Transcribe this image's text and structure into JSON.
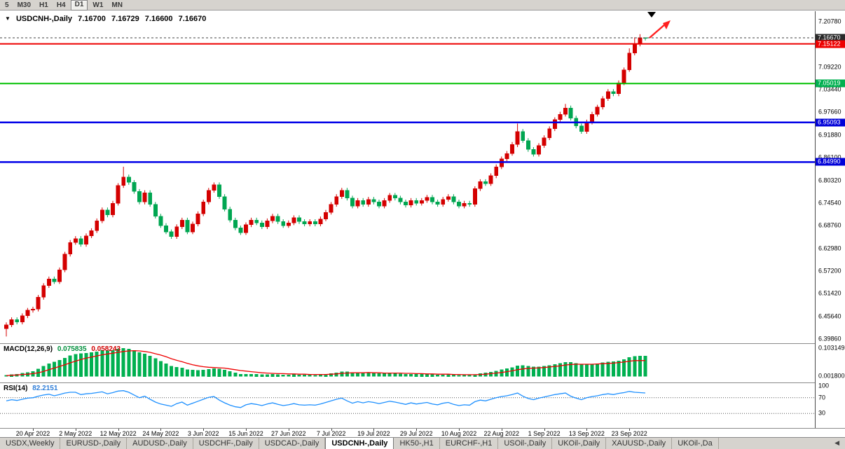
{
  "toolbar": {
    "periods": [
      {
        "label": "5"
      },
      {
        "label": "M30"
      },
      {
        "label": "H1"
      },
      {
        "label": "H4"
      },
      {
        "label": "D1",
        "active": true
      },
      {
        "label": "W1"
      },
      {
        "label": "MN"
      }
    ]
  },
  "chart": {
    "title": {
      "dropdown_icon": "▼",
      "symbol": "USDCNH-,Daily",
      "open": "7.16700",
      "high": "7.16729",
      "low": "7.16600",
      "close": "7.16670"
    },
    "price_axis": {
      "labels": [
        "7.20780",
        "7.15000",
        "7.09220",
        "7.03440",
        "6.97660",
        "6.91880",
        "6.86100",
        "6.80320",
        "6.74540",
        "6.68760",
        "6.62980",
        "6.57200",
        "6.51420",
        "6.45640",
        "6.39860"
      ],
      "markers": [
        {
          "text": "7.16670",
          "bg": "#2a2a2a",
          "role": "current-price"
        },
        {
          "text": "7.15122",
          "bg": "#ee0000",
          "role": "resistance-line"
        },
        {
          "text": "7.05019",
          "bg": "#00b050",
          "role": "support-line"
        },
        {
          "text": "6.95093",
          "bg": "#0000d8",
          "role": "support-line"
        },
        {
          "text": "6.84990",
          "bg": "#0000d8",
          "role": "support-line"
        }
      ]
    },
    "macd": {
      "label": "MACD(12,26,9)",
      "value": "0.075835",
      "signal_value": "0.058243"
    },
    "rsi": {
      "label": "RSI(14)",
      "value": "82.2151"
    }
  },
  "tabs_bar": {
    "scroll_icon": "◀",
    "tabs": [
      {
        "label": "USDX,Weekly"
      },
      {
        "label": "EURUSD-,Daily"
      },
      {
        "label": "AUDUSD-,Daily"
      },
      {
        "label": "USDCHF-,Daily"
      },
      {
        "label": "USDCAD-,Daily"
      },
      {
        "label": "USDCNH-,Daily",
        "active": true
      },
      {
        "label": "HK50-,H1"
      },
      {
        "label": "EURCHF-,H1"
      },
      {
        "label": "USOil-,Daily"
      },
      {
        "label": "UKOil-,Daily"
      },
      {
        "label": "XAUUSD-,Daily"
      },
      {
        "label": "UKOil-,Da"
      }
    ]
  },
  "chart_data": {
    "type": "candlestick",
    "symbol": "USDCNH-",
    "timeframe": "Daily",
    "ohlc_current": {
      "open": 7.167,
      "high": 7.16729,
      "low": 7.166,
      "close": 7.1667
    },
    "up_color": "#d40000",
    "down_color": "#00a651",
    "y_axis": {
      "min": 6.3986,
      "max": 7.2078,
      "tick_step": 0.0578
    },
    "x_ticks": {
      "indices": [
        5,
        13,
        21,
        29,
        37,
        45,
        53,
        61,
        69,
        77,
        85,
        93,
        101,
        109,
        117
      ],
      "labels": [
        "20 Apr 2022",
        "2 May 2022",
        "12 May 2022",
        "24 May 2022",
        "3 Jun 2022",
        "15 Jun 2022",
        "27 Jun 2022",
        "7 Jul 2022",
        "19 Jul 2022",
        "29 Jul 2022",
        "10 Aug 2022",
        "22 Aug 2022",
        "1 Sep 2022",
        "13 Sep 2022",
        "23 Sep 2022"
      ]
    },
    "h_lines": [
      {
        "value": 7.15122,
        "color": "#ee0000",
        "width": 2
      },
      {
        "value": 7.05019,
        "color": "#00c000",
        "width": 2
      },
      {
        "value": 6.95093,
        "color": "#0000e8",
        "width": 2.5
      },
      {
        "value": 6.8499,
        "color": "#0000e8",
        "width": 2.5
      }
    ],
    "current_price": {
      "value": 7.1667,
      "color": "#404040"
    },
    "annotations": {
      "trend_arrow_color": "#ff2020",
      "marker_triangle_color": "#000000"
    },
    "candles": {
      "note": "closes estimated from pixels; open = previous close; high/low = body extreme +/- default_wick unless overridden [high,low]",
      "first_open": 6.425,
      "default_wick": 0.006,
      "wick_overrides": {
        "0": [
          6.441,
          6.405
        ],
        "22": [
          6.838,
          6.784
        ],
        "96": [
          6.948,
          6.888
        ],
        "105": [
          6.998,
          6.966
        ],
        "117": [
          7.14,
          7.08
        ],
        "118": [
          7.168,
          7.122
        ],
        "119": [
          7.176,
          7.145
        ],
        "120": [
          7.1673,
          7.16
        ]
      },
      "closes": [
        6.435,
        6.448,
        6.442,
        6.458,
        6.472,
        6.475,
        6.505,
        6.535,
        6.552,
        6.545,
        6.575,
        6.615,
        6.645,
        6.655,
        6.64,
        6.662,
        6.675,
        6.7,
        6.728,
        6.715,
        6.745,
        6.79,
        6.812,
        6.798,
        6.775,
        6.748,
        6.772,
        6.742,
        6.712,
        6.688,
        6.672,
        6.66,
        6.685,
        6.702,
        6.672,
        6.692,
        6.718,
        6.748,
        6.778,
        6.792,
        6.762,
        6.73,
        6.702,
        6.682,
        6.67,
        6.69,
        6.702,
        6.695,
        6.685,
        6.7,
        6.712,
        6.698,
        6.688,
        6.695,
        6.708,
        6.698,
        6.692,
        6.698,
        6.692,
        6.705,
        6.722,
        6.742,
        6.762,
        6.778,
        6.758,
        6.738,
        6.752,
        6.742,
        6.755,
        6.748,
        6.738,
        6.752,
        6.765,
        6.758,
        6.748,
        6.74,
        6.752,
        6.745,
        6.752,
        6.76,
        6.748,
        6.742,
        6.755,
        6.762,
        6.748,
        6.738,
        6.745,
        6.742,
        6.782,
        6.8,
        6.795,
        6.815,
        6.838,
        6.858,
        6.872,
        6.895,
        6.928,
        6.905,
        6.882,
        6.87,
        6.892,
        6.912,
        6.935,
        6.958,
        6.972,
        6.988,
        6.962,
        6.942,
        6.928,
        6.952,
        6.972,
        6.99,
        7.012,
        7.03,
        7.024,
        7.052,
        7.085,
        7.128,
        7.152,
        7.167,
        7.1667
      ]
    },
    "indicators": {
      "macd": {
        "name": "MACD(12,26,9)",
        "current": 0.075835,
        "signal_current": 0.058243,
        "scale_top": 0.103149,
        "scale_bottom": 0.0018,
        "scale_labels": {
          "top": "0.103149",
          "bottom": "0.001800"
        },
        "histogram_color": "#00b050",
        "signal_color": "#ee0000",
        "values": [
          0.005,
          0.008,
          0.01,
          0.013,
          0.016,
          0.02,
          0.028,
          0.038,
          0.048,
          0.054,
          0.06,
          0.068,
          0.076,
          0.082,
          0.084,
          0.086,
          0.088,
          0.091,
          0.095,
          0.094,
          0.096,
          0.1,
          0.103,
          0.101,
          0.096,
          0.088,
          0.083,
          0.075,
          0.066,
          0.056,
          0.047,
          0.039,
          0.035,
          0.032,
          0.026,
          0.024,
          0.023,
          0.024,
          0.027,
          0.03,
          0.028,
          0.024,
          0.019,
          0.014,
          0.01,
          0.01,
          0.01,
          0.009,
          0.008,
          0.008,
          0.009,
          0.008,
          0.007,
          0.007,
          0.008,
          0.007,
          0.007,
          0.007,
          0.006,
          0.007,
          0.009,
          0.012,
          0.015,
          0.018,
          0.018,
          0.016,
          0.016,
          0.015,
          0.015,
          0.014,
          0.012,
          0.012,
          0.013,
          0.012,
          0.011,
          0.01,
          0.01,
          0.009,
          0.009,
          0.009,
          0.008,
          0.007,
          0.007,
          0.008,
          0.007,
          0.006,
          0.006,
          0.005,
          0.008,
          0.012,
          0.014,
          0.017,
          0.021,
          0.026,
          0.03,
          0.034,
          0.04,
          0.041,
          0.039,
          0.036,
          0.036,
          0.038,
          0.041,
          0.045,
          0.049,
          0.053,
          0.052,
          0.049,
          0.045,
          0.045,
          0.046,
          0.048,
          0.051,
          0.054,
          0.055,
          0.058,
          0.063,
          0.07,
          0.074,
          0.0755,
          0.075835
        ],
        "signal": [
          0.004,
          0.005,
          0.006,
          0.008,
          0.009,
          0.011,
          0.014,
          0.019,
          0.025,
          0.031,
          0.037,
          0.043,
          0.05,
          0.056,
          0.062,
          0.067,
          0.071,
          0.075,
          0.079,
          0.082,
          0.085,
          0.088,
          0.091,
          0.093,
          0.094,
          0.093,
          0.091,
          0.088,
          0.083,
          0.078,
          0.072,
          0.065,
          0.059,
          0.054,
          0.048,
          0.043,
          0.039,
          0.036,
          0.034,
          0.033,
          0.032,
          0.031,
          0.028,
          0.025,
          0.022,
          0.02,
          0.018,
          0.016,
          0.014,
          0.013,
          0.012,
          0.011,
          0.011,
          0.01,
          0.01,
          0.009,
          0.009,
          0.008,
          0.008,
          0.008,
          0.008,
          0.009,
          0.01,
          0.012,
          0.013,
          0.014,
          0.014,
          0.014,
          0.015,
          0.014,
          0.014,
          0.013,
          0.013,
          0.013,
          0.013,
          0.012,
          0.012,
          0.011,
          0.011,
          0.01,
          0.01,
          0.009,
          0.009,
          0.009,
          0.008,
          0.008,
          0.007,
          0.007,
          0.007,
          0.008,
          0.009,
          0.011,
          0.013,
          0.015,
          0.018,
          0.021,
          0.025,
          0.028,
          0.03,
          0.031,
          0.032,
          0.033,
          0.035,
          0.037,
          0.039,
          0.042,
          0.044,
          0.045,
          0.045,
          0.045,
          0.045,
          0.046,
          0.047,
          0.048,
          0.049,
          0.051,
          0.053,
          0.056,
          0.058,
          0.058,
          0.058243
        ]
      },
      "rsi": {
        "name": "RSI(14)",
        "current": 82.2151,
        "levels": [
          70,
          30
        ],
        "scale_labels": [
          "100",
          "70",
          "30"
        ],
        "color": "#1e90ff",
        "values": [
          62,
          65,
          63,
          66,
          69,
          70,
          74,
          77,
          79,
          75,
          78,
          82,
          84,
          84,
          78,
          80,
          81,
          83,
          85,
          80,
          83,
          87,
          88,
          84,
          77,
          70,
          74,
          66,
          59,
          54,
          51,
          48,
          55,
          59,
          51,
          56,
          61,
          66,
          71,
          73,
          64,
          57,
          51,
          47,
          45,
          52,
          55,
          53,
          50,
          54,
          57,
          53,
          50,
          52,
          55,
          52,
          51,
          52,
          51,
          54,
          58,
          62,
          66,
          69,
          62,
          56,
          60,
          57,
          60,
          58,
          55,
          58,
          61,
          59,
          56,
          53,
          57,
          54,
          56,
          58,
          54,
          52,
          56,
          58,
          53,
          50,
          52,
          51,
          60,
          64,
          62,
          66,
          70,
          73,
          75,
          78,
          82,
          74,
          68,
          65,
          69,
          72,
          75,
          78,
          80,
          82,
          74,
          69,
          65,
          70,
          73,
          75,
          78,
          80,
          78,
          81,
          83,
          86,
          84,
          83,
          82.2151
        ]
      }
    }
  }
}
